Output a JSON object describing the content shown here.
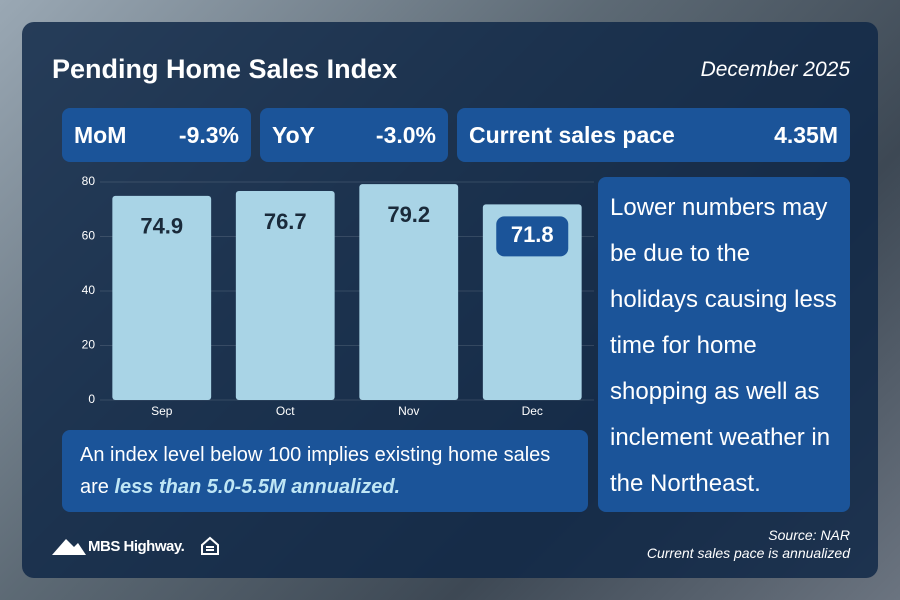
{
  "chart_data": {
    "type": "bar",
    "title": "Pending Home Sales Index",
    "subtitle": "December 2025",
    "categories": [
      "Sep",
      "Oct",
      "Nov",
      "Dec"
    ],
    "values": [
      74.9,
      76.7,
      79.2,
      71.8
    ],
    "color": "#a9d4e6",
    "highlighted_category": "Dec",
    "ylim": [
      0,
      80
    ],
    "yticks": [
      0,
      20,
      40,
      60,
      80
    ],
    "grid": true
  },
  "stats": [
    {
      "label": "MoM",
      "value": "-9.3%"
    },
    {
      "label": "YoY",
      "value": "-3.0%"
    },
    {
      "label": "Current sales pace",
      "value": "4.35M"
    }
  ],
  "note": {
    "text": "An index level below 100 implies existing home sales are ",
    "emphasis": "less than 5.0-5.5M annualized."
  },
  "commentary": "Lower numbers may be due to the holidays causing less time for home shopping as well as inclement weather in the Northeast.",
  "footer": {
    "logo": "MBS Highway.",
    "source": "Source: NAR",
    "footnote": "Current sales pace is annualized"
  }
}
